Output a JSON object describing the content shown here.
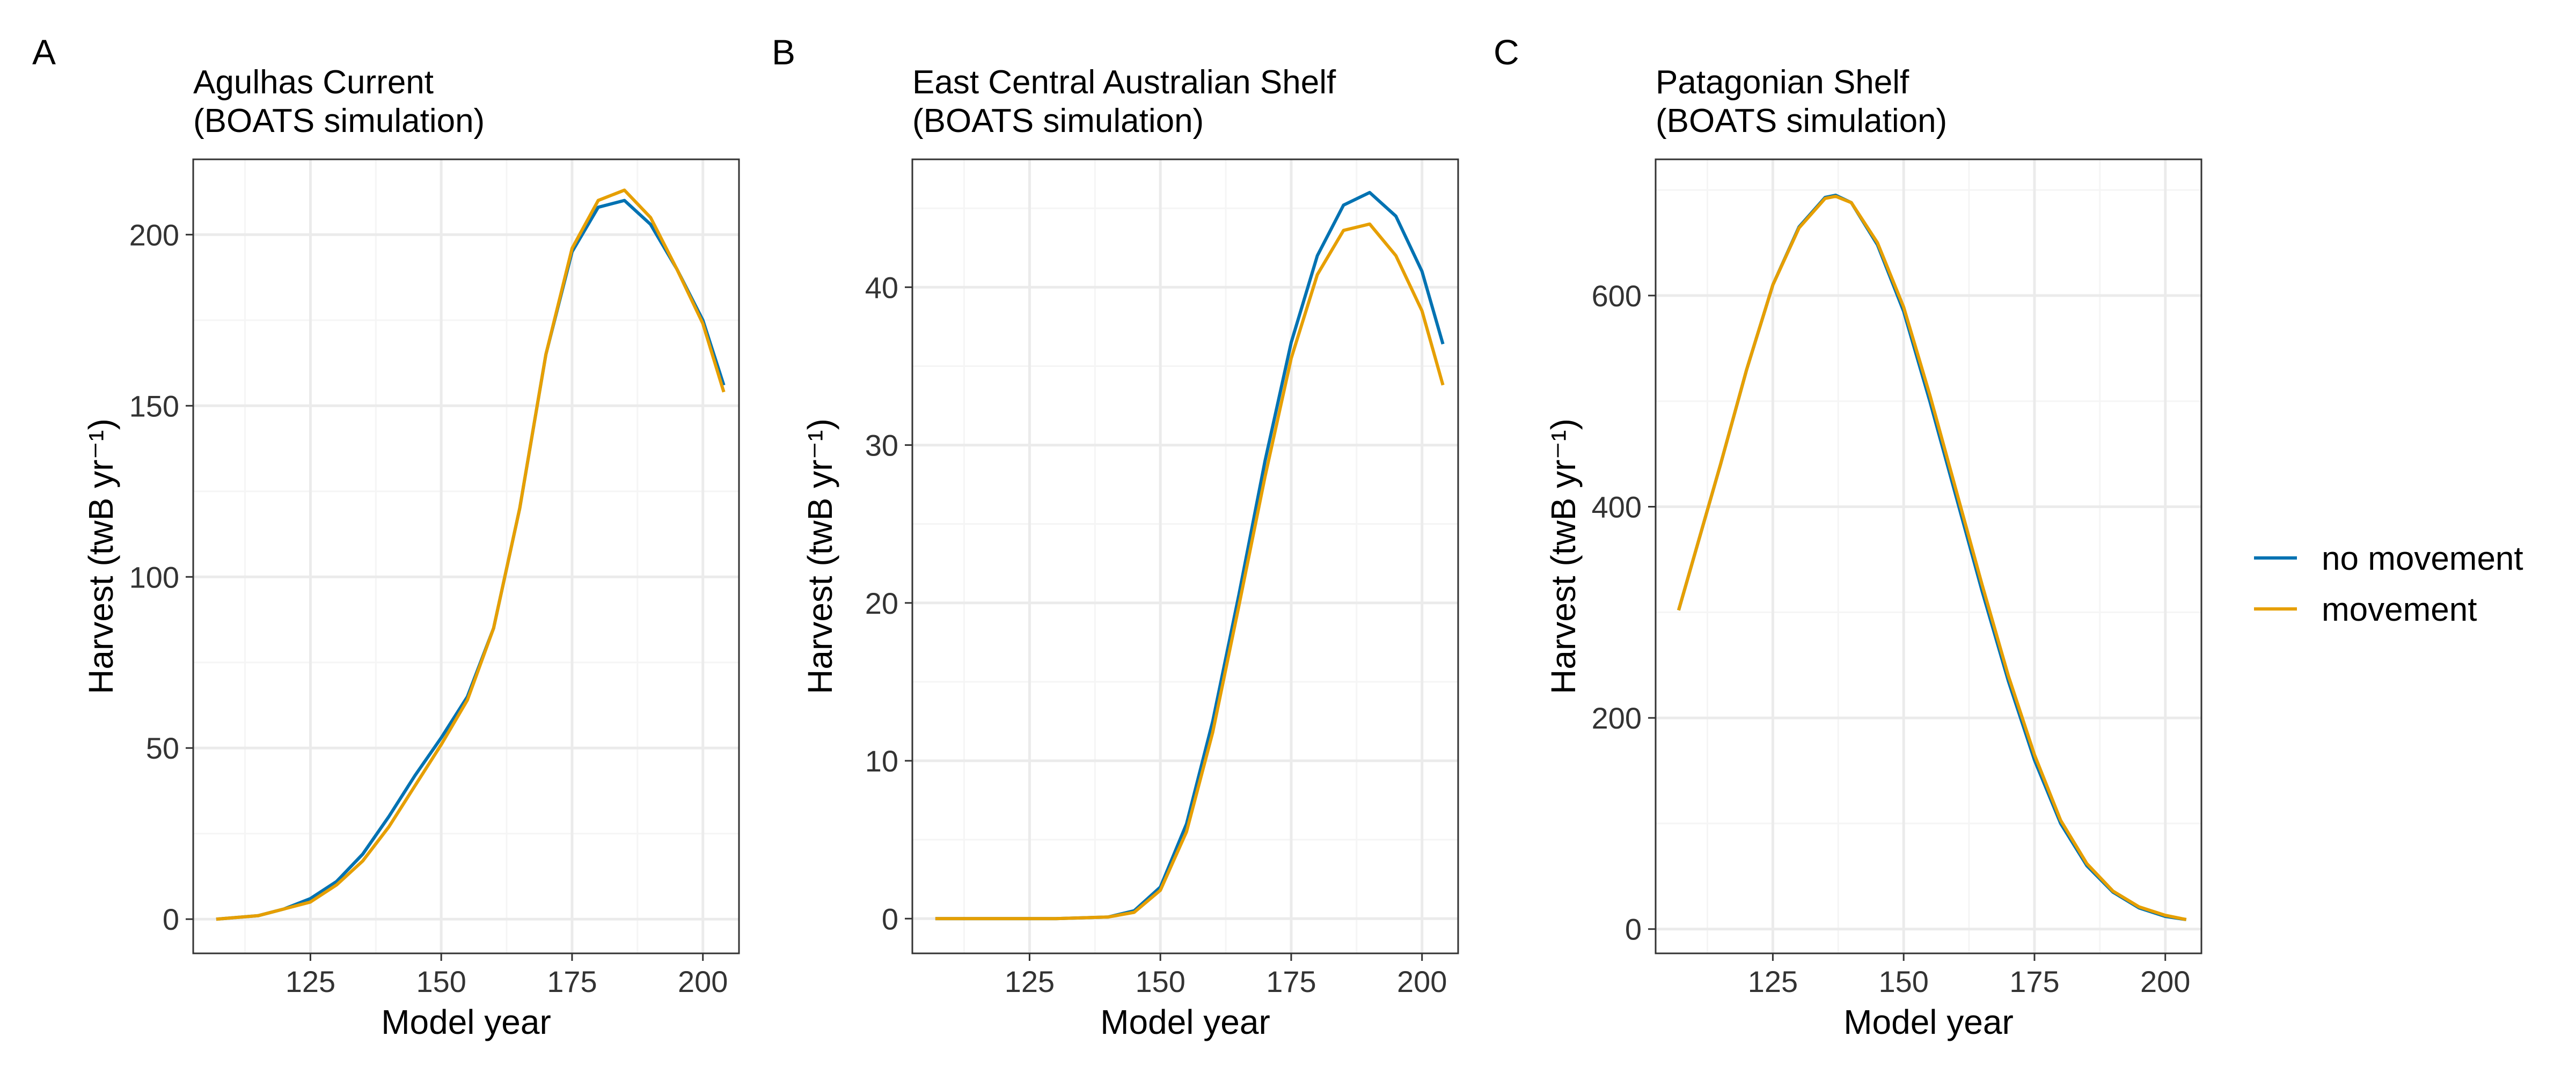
{
  "colors": {
    "no_movement": "#0072B2",
    "movement": "#E69F00",
    "grid_major": "#EBEBEB",
    "grid_minor": "#F5F5F5",
    "panel_border": "#333333"
  },
  "legend": {
    "placement": "right",
    "entries": [
      "no movement",
      "movement"
    ]
  },
  "chart_data": [
    {
      "panel_letter": "A",
      "type": "line",
      "title": "Agulhas Current",
      "subtitle": "(BOATS simulation)",
      "xlabel": "Model year",
      "ylabel": "Harvest (twB yr⁻¹)",
      "xlim": [
        102.6,
        206.9
      ],
      "ylim": [
        -10,
        222
      ],
      "xticks": [
        125,
        150,
        175,
        200
      ],
      "yticks": [
        0,
        50,
        100,
        150,
        200
      ],
      "grid": true,
      "series": [
        {
          "name": "no movement",
          "color_key": "no_movement",
          "x": [
            107,
            115,
            120,
            125,
            130,
            135,
            140,
            145,
            150,
            155,
            160,
            165,
            170,
            175,
            180,
            185,
            190,
            195,
            200,
            204
          ],
          "y": [
            0,
            1,
            3,
            6,
            11,
            19,
            30,
            42,
            53,
            65,
            85,
            120,
            165,
            195,
            208,
            210,
            203,
            190,
            175,
            156
          ]
        },
        {
          "name": "movement",
          "color_key": "movement",
          "x": [
            107,
            115,
            120,
            125,
            130,
            135,
            140,
            145,
            150,
            155,
            160,
            165,
            170,
            175,
            180,
            185,
            190,
            195,
            200,
            204
          ],
          "y": [
            0,
            1,
            3,
            5,
            10,
            17,
            27,
            39,
            51,
            64,
            85,
            120,
            165,
            196,
            210,
            213,
            205,
            190,
            174,
            154
          ]
        }
      ]
    },
    {
      "panel_letter": "B",
      "type": "line",
      "title": "East Central Australian Shelf",
      "subtitle": "(BOATS simulation)",
      "xlabel": "Model year",
      "ylabel": "Harvest (twB yr⁻¹)",
      "xlim": [
        102.6,
        206.9
      ],
      "ylim": [
        -2.2,
        48.1
      ],
      "xticks": [
        125,
        150,
        175,
        200
      ],
      "yticks": [
        0,
        10,
        20,
        30,
        40
      ],
      "grid": true,
      "series": [
        {
          "name": "no movement",
          "color_key": "no_movement",
          "x": [
            107,
            120,
            130,
            140,
            145,
            150,
            155,
            160,
            165,
            170,
            175,
            180,
            185,
            190,
            195,
            200,
            204
          ],
          "y": [
            0,
            0,
            0,
            0.1,
            0.5,
            2,
            6,
            12.5,
            20.5,
            29,
            36.5,
            42,
            45.2,
            46,
            44.5,
            41,
            36.4
          ]
        },
        {
          "name": "movement",
          "color_key": "movement",
          "x": [
            107,
            120,
            130,
            140,
            145,
            150,
            155,
            160,
            165,
            170,
            175,
            180,
            185,
            190,
            195,
            200,
            204
          ],
          "y": [
            0,
            0,
            0,
            0.1,
            0.4,
            1.8,
            5.5,
            11.8,
            19.8,
            28,
            35.5,
            40.8,
            43.6,
            44,
            42,
            38.5,
            33.8
          ]
        }
      ]
    },
    {
      "panel_letter": "C",
      "type": "line",
      "title": "Patagonian Shelf",
      "subtitle": "(BOATS simulation)",
      "xlabel": "Model year",
      "ylabel": "Harvest (twB yr⁻¹)",
      "xlim": [
        102.6,
        206.9
      ],
      "ylim": [
        -23,
        729
      ],
      "xticks": [
        125,
        150,
        175,
        200
      ],
      "yticks": [
        0,
        200,
        400,
        600
      ],
      "grid": true,
      "series": [
        {
          "name": "no movement",
          "color_key": "no_movement",
          "x": [
            107,
            115,
            120,
            125,
            130,
            135,
            137,
            140,
            145,
            150,
            155,
            160,
            165,
            170,
            175,
            180,
            185,
            190,
            195,
            200,
            204
          ],
          "y": [
            302,
            440,
            530,
            610,
            665,
            693,
            695,
            688,
            648,
            585,
            500,
            410,
            320,
            235,
            160,
            100,
            60,
            35,
            20,
            12,
            9
          ]
        },
        {
          "name": "movement",
          "color_key": "movement",
          "x": [
            107,
            115,
            120,
            125,
            130,
            135,
            137,
            140,
            145,
            150,
            155,
            160,
            165,
            170,
            175,
            180,
            185,
            190,
            195,
            200,
            204
          ],
          "y": [
            302,
            440,
            530,
            610,
            664,
            692,
            694,
            688,
            650,
            589,
            506,
            416,
            326,
            240,
            165,
            103,
            62,
            36,
            21,
            13,
            9
          ]
        }
      ]
    }
  ]
}
